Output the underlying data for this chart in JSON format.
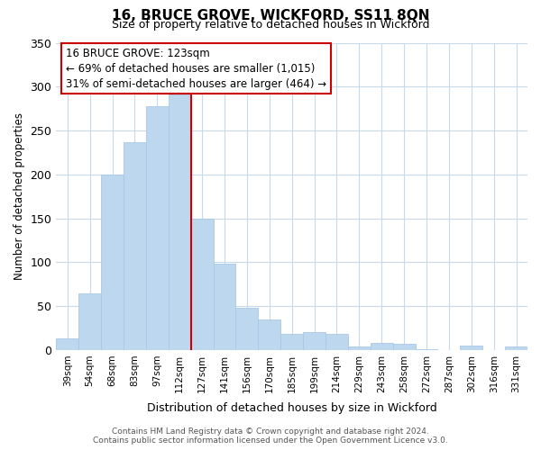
{
  "title": "16, BRUCE GROVE, WICKFORD, SS11 8QN",
  "subtitle": "Size of property relative to detached houses in Wickford",
  "xlabel": "Distribution of detached houses by size in Wickford",
  "ylabel": "Number of detached properties",
  "categories": [
    "39sqm",
    "54sqm",
    "68sqm",
    "83sqm",
    "97sqm",
    "112sqm",
    "127sqm",
    "141sqm",
    "156sqm",
    "170sqm",
    "185sqm",
    "199sqm",
    "214sqm",
    "229sqm",
    "243sqm",
    "258sqm",
    "272sqm",
    "287sqm",
    "302sqm",
    "316sqm",
    "331sqm"
  ],
  "values": [
    13,
    64,
    200,
    237,
    278,
    291,
    150,
    98,
    48,
    35,
    18,
    20,
    18,
    4,
    8,
    7,
    1,
    0,
    5,
    0,
    4
  ],
  "bar_color": "#bdd7ee",
  "bar_edge_color": "#a8c8e8",
  "reference_line_color": "#cc0000",
  "reference_line_index": 6,
  "ylim": [
    0,
    350
  ],
  "yticks": [
    0,
    50,
    100,
    150,
    200,
    250,
    300,
    350
  ],
  "annotation_title": "16 BRUCE GROVE: 123sqm",
  "annotation_line1": "← 69% of detached houses are smaller (1,015)",
  "annotation_line2": "31% of semi-detached houses are larger (464) →",
  "annotation_box_edge": "#cc0000",
  "footer_line1": "Contains HM Land Registry data © Crown copyright and database right 2024.",
  "footer_line2": "Contains public sector information licensed under the Open Government Licence v3.0.",
  "background_color": "#ffffff",
  "grid_color": "#c8daea"
}
